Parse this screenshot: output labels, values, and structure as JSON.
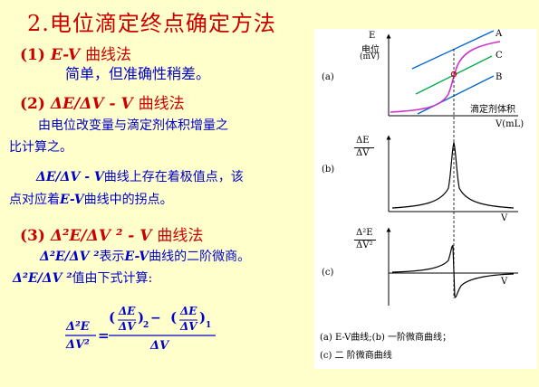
{
  "title": "2.电位滴定终点确定方法",
  "method1": {
    "num": "(1)",
    "name": "E-V",
    "suffix": "曲线法",
    "desc": "简单，但准确性稍差。"
  },
  "method2": {
    "num": "(2)",
    "name": "ΔE/ΔV - V",
    "suffix": "曲线法",
    "desc_line1": "由电位改变量与滴定剂体积增量之",
    "desc_line2": "比计算之。",
    "desc2_bold": "ΔE/ΔV - V",
    "desc2_line1_rest": "曲线上存在着极值点，该",
    "desc2_line2_a": "点对应着",
    "desc2_line2_bold": "E-V",
    "desc2_line2_b": "曲线中的拐点。"
  },
  "method3": {
    "num": "(3)",
    "name": "Δ²E/ΔV ² - V",
    "suffix": "曲线法",
    "desc_bold": "Δ²E/ΔV ²",
    "desc_a": "表示",
    "desc_bold2": "E-V",
    "desc_b": "曲线的二阶微商。",
    "calc_bold": "Δ²E/ΔV ²",
    "calc_rest": "值由下式计算:"
  },
  "formula": {
    "lhs_num": "Δ²E",
    "lhs_den": "ΔV²",
    "term1": "ΔE",
    "term1_den": "ΔV",
    "sub2": "2",
    "sub1": "1",
    "rhs_den": "ΔV"
  },
  "figure": {
    "panel_a": {
      "tag": "(a)",
      "ylabel_e": "E",
      "ylabel_zh": "电位",
      "ylabel_unit": "(mV)",
      "label_a": "A",
      "label_b": "B",
      "label_c": "C",
      "xlabel_zh": "滴定剂体积",
      "xlabel_v": "V(mL)"
    },
    "panel_b": {
      "tag": "(b)",
      "ylabel_num": "ΔE",
      "ylabel_den": "ΔV",
      "xlabel": "V"
    },
    "panel_c": {
      "tag": "(c)",
      "ylabel_num": "Δ²E",
      "ylabel_den": "ΔV²",
      "xlabel": "V"
    },
    "caption_line1": "(a) E-V曲线;(b) 一阶微商曲线；",
    "caption_line2": "(c) 二 阶微商曲线",
    "colors": {
      "titration_curve": "#cc33cc",
      "line_a": "#0066cc",
      "line_b": "#0066cc",
      "line_c": "#00aa44",
      "midpoint": "#cc0000"
    }
  }
}
